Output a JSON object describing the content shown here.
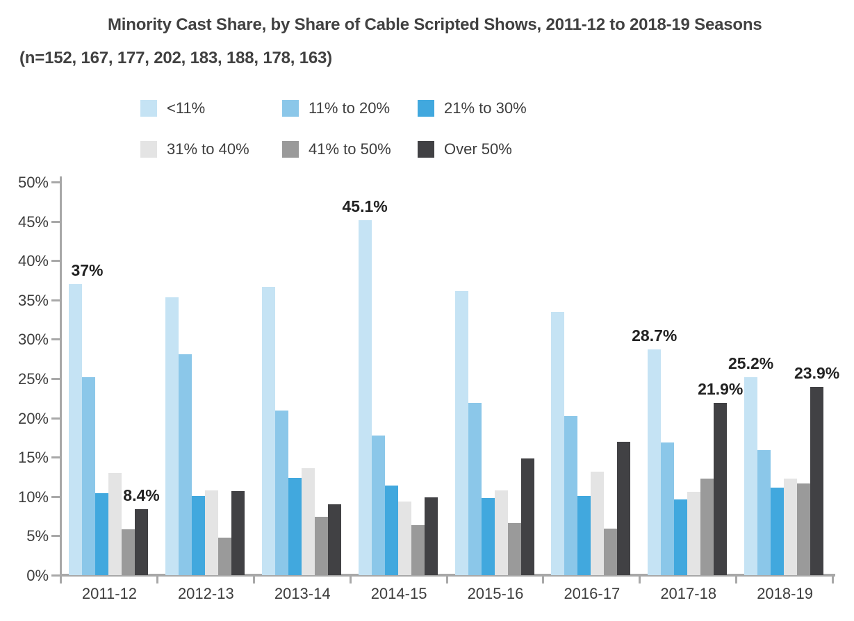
{
  "page": {
    "title": "Minority Cast Share, by Share of Cable Scripted Shows, 2011-12 to 2018-19 Seasons",
    "subtitle": "(n=152, 167, 177, 202, 183, 188, 178, 163)"
  },
  "chart_data": {
    "type": "bar",
    "title": "Minority Cast Share, by Share of Cable Scripted Shows, 2011-12 to 2018-19 Seasons",
    "subtitle": "(n=152, 167, 177, 202, 183, 188, 178, 163)",
    "categories": [
      "2011-12",
      "2012-13",
      "2013-14",
      "2014-15",
      "2015-16",
      "2016-17",
      "2017-18",
      "2018-19"
    ],
    "series": [
      {
        "name": "<11%",
        "color": "#c5e3f4",
        "values": [
          37.0,
          35.3,
          36.7,
          45.1,
          36.1,
          33.5,
          28.7,
          25.2
        ]
      },
      {
        "name": "11% to 20%",
        "color": "#8bc7e9",
        "values": [
          25.2,
          28.1,
          20.9,
          17.8,
          21.9,
          20.2,
          16.9,
          15.9
        ]
      },
      {
        "name": "21% to 30%",
        "color": "#41a8de",
        "values": [
          10.4,
          10.1,
          12.4,
          11.4,
          9.8,
          10.1,
          9.6,
          11.1
        ]
      },
      {
        "name": "31% to 40%",
        "color": "#e4e4e4",
        "values": [
          13.0,
          10.8,
          13.6,
          9.4,
          10.8,
          13.2,
          10.6,
          12.3
        ]
      },
      {
        "name": "41% to 50%",
        "color": "#9a9a9a",
        "values": [
          5.8,
          4.8,
          7.4,
          6.4,
          6.6,
          5.9,
          12.3,
          11.7
        ]
      },
      {
        "name": "Over 50%",
        "color": "#414144",
        "values": [
          8.4,
          10.7,
          9.0,
          9.9,
          14.8,
          17.0,
          21.9,
          23.9
        ]
      }
    ],
    "point_labels": [
      {
        "series": 0,
        "category": 0,
        "text": "37%",
        "dx": 17
      },
      {
        "series": 5,
        "category": 0,
        "text": "8.4%",
        "dx": 0
      },
      {
        "series": 0,
        "category": 3,
        "text": "45.1%",
        "dx": 0
      },
      {
        "series": 0,
        "category": 6,
        "text": "28.7%",
        "dx": 0
      },
      {
        "series": 5,
        "category": 6,
        "text": "21.9%",
        "dx": 0
      },
      {
        "series": 0,
        "category": 7,
        "text": "25.2%",
        "dx": 0
      },
      {
        "series": 5,
        "category": 7,
        "text": "23.9%",
        "dx": 0
      }
    ],
    "ylim": [
      0,
      50
    ],
    "y_tick_labels": [
      "50%",
      "45%",
      "40%",
      "35%",
      "30%",
      "25%",
      "20%",
      "15%",
      "10%",
      "5%",
      "0%"
    ],
    "grid": false,
    "legend_position": "top-left",
    "axis_color": "#a8a8a8",
    "tick_text_color": "#3d3d3d",
    "value_label_color": "#222222"
  }
}
